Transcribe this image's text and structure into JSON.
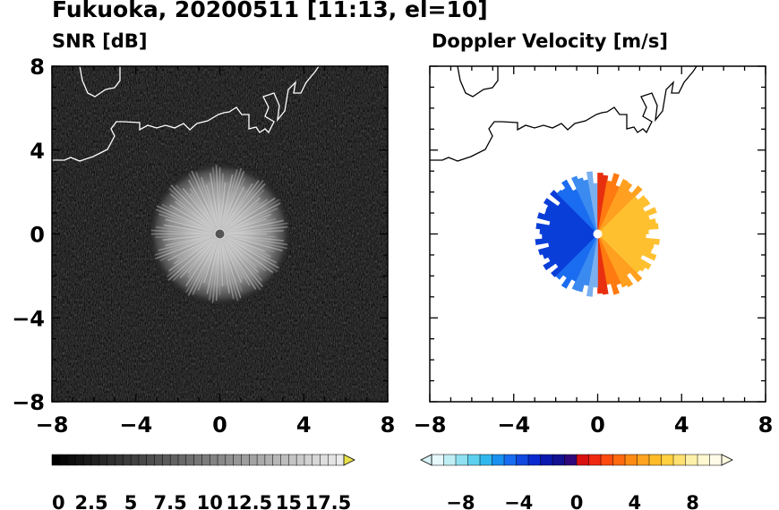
{
  "figure": {
    "title": "Fukuoka, 20200511 [11:13, el=10]"
  },
  "chart_data": [
    {
      "type": "heatmap",
      "title": "SNR [dB]",
      "xlim": [
        -8,
        8
      ],
      "ylim": [
        -8,
        8
      ],
      "xticks": [
        "−8",
        "−4",
        "0",
        "4",
        "8"
      ],
      "yticks": [
        "8",
        "4",
        "0",
        "−4",
        "−8"
      ],
      "echo_center": [
        0,
        0
      ],
      "echo_radius_km": 3,
      "colormap": "grayscale",
      "colorbar": {
        "min": 0,
        "max": 18.5,
        "extend": "max",
        "tick_labels": [
          "0",
          "2.5",
          "5",
          "7.5",
          "10",
          "12.5",
          "15",
          "17.5"
        ],
        "colors": [
          "#000000",
          "#ffffff",
          "#e8e04a"
        ]
      }
    },
    {
      "type": "heatmap",
      "title": "Doppler Velocity [m/s]",
      "xlim": [
        -8,
        8
      ],
      "ylim": [
        -8,
        8
      ],
      "xticks": [
        "−8",
        "−4",
        "0",
        "4",
        "8"
      ],
      "yticks": [],
      "echo_center": [
        0,
        0
      ],
      "echo_radius_km": 2.8,
      "velocity_pattern": "negative (toward radar) on west side, positive (away) on east side",
      "colorbar": {
        "min": -10,
        "max": 10,
        "extend": "both",
        "tick_labels": [
          "−8",
          "−4",
          "0",
          "4",
          "8"
        ],
        "colors": [
          "#d8f4f8",
          "#4fd0f0",
          "#1a6cf0",
          "#0a18b0",
          "#3a0a80",
          "#e01010",
          "#ff7a10",
          "#ffc830",
          "#fff09a",
          "#fffbe0"
        ]
      }
    }
  ]
}
